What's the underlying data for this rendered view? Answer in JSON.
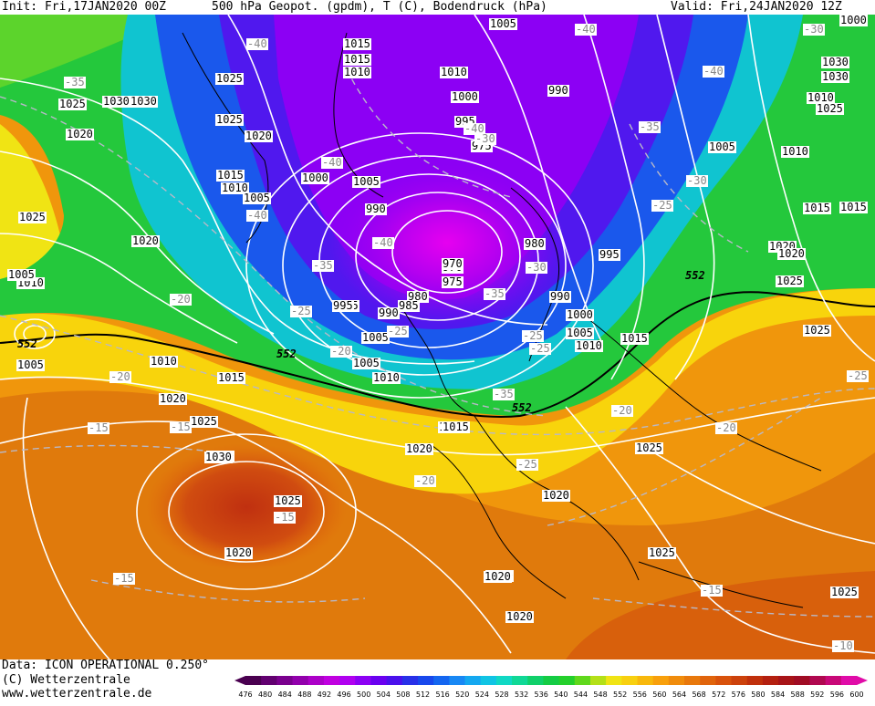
{
  "header": {
    "init": "Init: Fri,17JAN2020 00Z",
    "fields": "500 hPa Geopot. (gpdm), T (C), Bodendruck (hPa)",
    "valid": "Valid: Fri,24JAN2020 12Z"
  },
  "footer": {
    "data_source": "Data: ICON OPERATIONAL 0.250°",
    "copyright": "(C) Wetterzentrale",
    "website": "www.wetterzentrale.de"
  },
  "legend": {
    "colors": [
      "#4a0050",
      "#620070",
      "#7a008e",
      "#9200ac",
      "#ac00c8",
      "#c000e0",
      "#b000f0",
      "#8c00f4",
      "#6a00f0",
      "#4a10ec",
      "#2830e8",
      "#1848ec",
      "#1466f0",
      "#1888f4",
      "#14a8f0",
      "#10c4e4",
      "#10d8c4",
      "#10d896",
      "#10d06a",
      "#14cc44",
      "#24d02c",
      "#60d81c",
      "#b4e018",
      "#f0e414",
      "#f8d010",
      "#f8b80c",
      "#f8a00c",
      "#f08c0c",
      "#e8780c",
      "#e0640c",
      "#d8520c",
      "#cc420c",
      "#c0300c",
      "#b42010",
      "#a81418",
      "#a00c24",
      "#b00850",
      "#c80878",
      "#e00ca8"
    ],
    "ticks": [
      "476",
      "480",
      "484",
      "488",
      "492",
      "496",
      "500",
      "504",
      "508",
      "512",
      "516",
      "520",
      "524",
      "528",
      "532",
      "536",
      "540",
      "544",
      "548",
      "552",
      "556",
      "560",
      "564",
      "568",
      "572",
      "576",
      "580",
      "584",
      "588",
      "592",
      "596",
      "600"
    ]
  },
  "pressure_labels": [
    {
      "text": "1015"
    },
    {
      "text": "1015"
    },
    {
      "text": "1010"
    },
    {
      "text": "1005"
    },
    {
      "text": "1010"
    },
    {
      "text": "1025"
    },
    {
      "text": "1030"
    },
    {
      "text": "1025"
    },
    {
      "text": "1025"
    },
    {
      "text": "1020"
    },
    {
      "text": "1020"
    },
    {
      "text": "1015"
    },
    {
      "text": "1010"
    },
    {
      "text": "1005"
    },
    {
      "text": "1000"
    },
    {
      "text": "1005"
    },
    {
      "text": "990"
    },
    {
      "text": "1000"
    },
    {
      "text": "995"
    },
    {
      "text": "985"
    },
    {
      "text": "980"
    },
    {
      "text": "975"
    },
    {
      "text": "990"
    },
    {
      "text": "995"
    },
    {
      "text": "970"
    },
    {
      "text": "975"
    },
    {
      "text": "980"
    },
    {
      "text": "985"
    },
    {
      "text": "990"
    },
    {
      "text": "995"
    },
    {
      "text": "990"
    },
    {
      "text": "1000"
    },
    {
      "text": "1005"
    },
    {
      "text": "1010"
    },
    {
      "text": "1005"
    },
    {
      "text": "1010"
    },
    {
      "text": "1015"
    },
    {
      "text": "1015"
    },
    {
      "text": "1010"
    },
    {
      "text": "1015"
    },
    {
      "text": "1020"
    },
    {
      "text": "1025"
    },
    {
      "text": "1030"
    },
    {
      "text": "1025"
    },
    {
      "text": "1020"
    },
    {
      "text": "1020"
    },
    {
      "text": "1025"
    },
    {
      "text": "1020"
    },
    {
      "text": "1010"
    },
    {
      "text": "1005"
    },
    {
      "text": "1020"
    },
    {
      "text": "1025"
    },
    {
      "text": "1030"
    },
    {
      "text": "1030"
    },
    {
      "text": "1025"
    },
    {
      "text": "1020"
    },
    {
      "text": "1015"
    },
    {
      "text": "1010"
    },
    {
      "text": "1005"
    },
    {
      "text": "1020"
    },
    {
      "text": "1020"
    },
    {
      "text": "1020"
    },
    {
      "text": "1025"
    },
    {
      "text": "1025"
    },
    {
      "text": "995"
    },
    {
      "text": "1010"
    },
    {
      "text": "1015"
    },
    {
      "text": "1005"
    },
    {
      "text": "1015"
    },
    {
      "text": "1025"
    },
    {
      "text": "1020"
    },
    {
      "text": "1005"
    },
    {
      "text": "1000"
    },
    {
      "text": "1030"
    },
    {
      "text": "1025"
    }
  ],
  "temperature_labels": [
    {
      "text": "-40"
    },
    {
      "text": "-35"
    },
    {
      "text": "-40"
    },
    {
      "text": "-40"
    },
    {
      "text": "-40"
    },
    {
      "text": "-40"
    },
    {
      "text": "-40"
    },
    {
      "text": "-35"
    },
    {
      "text": "-35"
    },
    {
      "text": "-30"
    },
    {
      "text": "-35"
    },
    {
      "text": "-30"
    },
    {
      "text": "-25"
    },
    {
      "text": "-20"
    },
    {
      "text": "-25"
    },
    {
      "text": "-20"
    },
    {
      "text": "-25"
    },
    {
      "text": "-25"
    },
    {
      "text": "-20"
    },
    {
      "text": "-15"
    },
    {
      "text": "-15"
    },
    {
      "text": "-15"
    },
    {
      "text": "-15"
    },
    {
      "text": "-20"
    },
    {
      "text": "-25"
    },
    {
      "text": "-20"
    },
    {
      "text": "-20"
    },
    {
      "text": "-15"
    },
    {
      "text": "-25"
    },
    {
      "text": "-10"
    },
    {
      "text": "-30"
    },
    {
      "text": "-40"
    },
    {
      "text": "-30"
    },
    {
      "text": "-25"
    },
    {
      "text": "-35"
    }
  ],
  "contour_552_labels": [
    {
      "text": "552"
    },
    {
      "text": "552"
    },
    {
      "text": "552"
    },
    {
      "text": "552"
    }
  ],
  "centers": [
    {
      "text": "970"
    },
    {
      "text": "1030"
    }
  ]
}
